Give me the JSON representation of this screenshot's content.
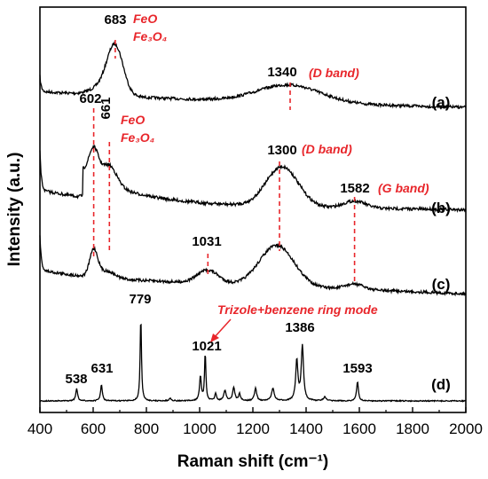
{
  "chart_data": {
    "type": "line",
    "title": "",
    "xlabel": "Raman shift (cm⁻¹)",
    "ylabel": "Intensity (a.u.)",
    "xlim": [
      400,
      2000
    ],
    "xticks": [
      400,
      600,
      800,
      1000,
      1200,
      1400,
      1600,
      1800,
      2000
    ],
    "yticks_shown": false,
    "colors": {
      "trace": "#000000",
      "annotation": "#e8262b"
    },
    "series": [
      {
        "name": "(a)",
        "peaks_cm": [
          683,
          1340
        ],
        "peak_labels": [
          "683",
          "1340"
        ],
        "annotations": [
          {
            "x": 683,
            "lines": [
              "FeO",
              "Fe₃O₄"
            ]
          },
          {
            "x": 1340,
            "lines": [
              "(D band)"
            ]
          }
        ]
      },
      {
        "name": "(b)",
        "peaks_cm": [
          602,
          661,
          1300,
          1582
        ],
        "peak_labels": [
          "602",
          "661",
          "1300",
          "1582"
        ],
        "annotations": [
          {
            "x": 661,
            "lines": [
              "FeO",
              "Fe₃O₄"
            ]
          },
          {
            "x": 1300,
            "lines": [
              "(D band)"
            ]
          },
          {
            "x": 1582,
            "lines": [
              "(G band)"
            ]
          }
        ]
      },
      {
        "name": "(c)",
        "peaks_cm": [
          1031
        ],
        "peak_labels": [
          "1031"
        ],
        "annotations": []
      },
      {
        "name": "(d)",
        "peaks_cm": [
          538,
          631,
          779,
          1021,
          1386,
          1593
        ],
        "peak_labels": [
          "538",
          "631",
          "779",
          "1021",
          "1386",
          "1593"
        ],
        "annotations": [
          {
            "x": 1021,
            "lines": [
              "Trizole+benzene ring mode"
            ]
          }
        ]
      }
    ]
  }
}
